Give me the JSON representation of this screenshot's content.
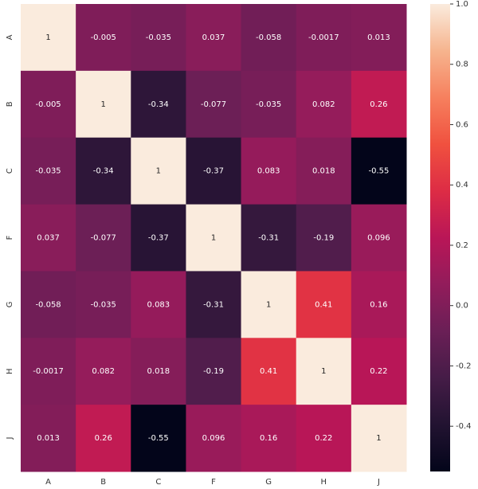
{
  "chart_data": {
    "type": "heatmap",
    "categories": [
      "A",
      "B",
      "C",
      "F",
      "G",
      "H",
      "J"
    ],
    "y_categories": [
      "A",
      "B",
      "C",
      "F",
      "G",
      "H",
      "J"
    ],
    "values": [
      [
        1,
        -0.005,
        -0.035,
        0.037,
        -0.058,
        -0.0017,
        0.013
      ],
      [
        -0.005,
        1,
        -0.34,
        -0.077,
        -0.035,
        0.082,
        0.26
      ],
      [
        -0.035,
        -0.34,
        1,
        -0.37,
        0.083,
        0.018,
        -0.55
      ],
      [
        0.037,
        -0.077,
        -0.37,
        1,
        -0.31,
        -0.19,
        0.096
      ],
      [
        -0.058,
        -0.035,
        0.083,
        -0.31,
        1,
        0.41,
        0.16
      ],
      [
        -0.0017,
        0.082,
        0.018,
        -0.19,
        0.41,
        1,
        0.22
      ],
      [
        0.013,
        0.26,
        -0.55,
        0.096,
        0.16,
        0.22,
        1
      ]
    ],
    "zlim": [
      -0.55,
      1
    ],
    "zticks": [
      {
        "value": 1,
        "label": "1.0"
      },
      0.8,
      0.6,
      0.4,
      0.2,
      {
        "value": 0,
        "label": "0.0"
      },
      -0.2,
      -0.4
    ],
    "colormap": [
      "#03051a",
      "#221331",
      "#451c47",
      "#6a1f56",
      "#921c5b",
      "#b91657",
      "#dd2c45",
      "#f0513f",
      "#f6805e",
      "#f6b48e",
      "#faebdd"
    ]
  }
}
